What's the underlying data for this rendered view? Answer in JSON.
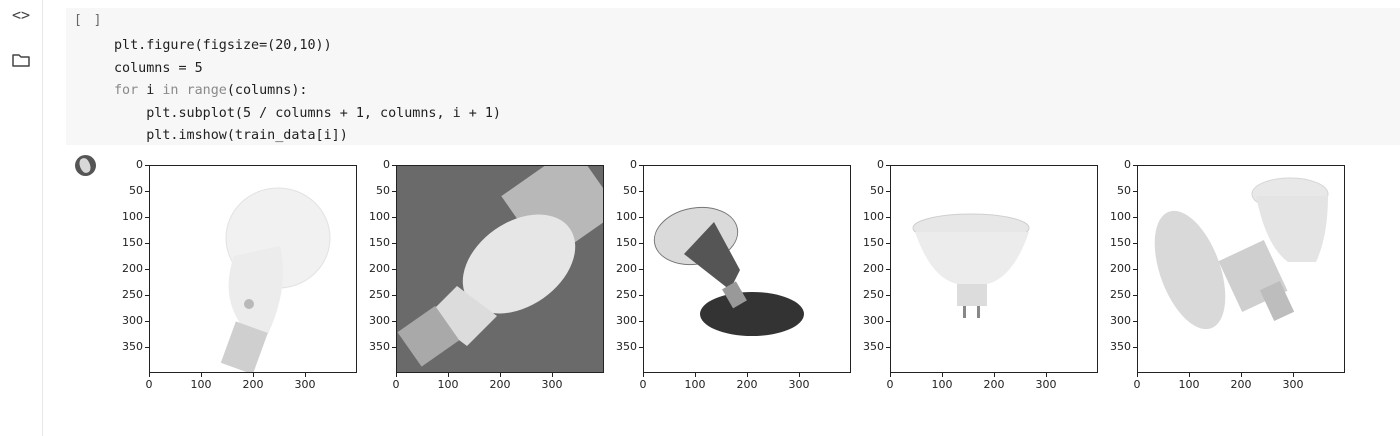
{
  "sidebar": {
    "icons": [
      {
        "name": "code-snippets-icon",
        "glyph": "<>"
      },
      {
        "name": "folder-icon"
      }
    ]
  },
  "cell": {
    "run_indicator": "[ ]",
    "code_lines": [
      "plt.figure(figsize=(20,10))",
      "columns = 5",
      "for i in range(columns):",
      "    plt.subplot(5 / columns + 1, columns, i + 1)",
      "    plt.imshow(train_data[i])"
    ]
  },
  "output": {
    "y_ticks": [
      "0",
      "50",
      "100",
      "150",
      "200",
      "250",
      "300",
      "350"
    ],
    "x_ticks": [
      "0",
      "100",
      "200",
      "300"
    ],
    "images": [
      {
        "name": "bulb-image-1"
      },
      {
        "name": "bulb-image-2"
      },
      {
        "name": "bulb-image-3"
      },
      {
        "name": "bulb-image-4"
      },
      {
        "name": "bulb-image-5"
      }
    ]
  },
  "colors": {
    "cell_bg": "#f7f7f7",
    "keyword": "#8a8a8a",
    "text": "#212121"
  }
}
